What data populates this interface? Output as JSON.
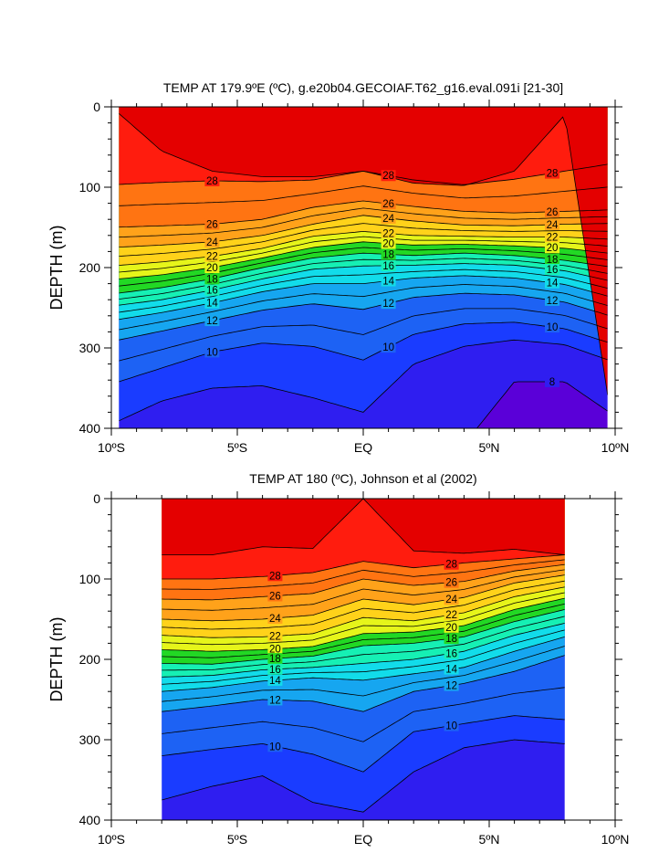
{
  "chart_data": [
    {
      "type": "heatmap",
      "title": "TEMP AT 179.9ºE (ºC), g.e20b04.GECOIAF.T62_g16.eval.091i [21-30]",
      "xlabel": "",
      "ylabel": "DEPTH (m)",
      "xlim": [
        -10,
        10
      ],
      "ylim": [
        400,
        0
      ],
      "x_ticks": [
        "10ºS",
        "5ºS",
        "EQ",
        "5ºN",
        "10ºN"
      ],
      "y_ticks": [
        "0",
        "100",
        "200",
        "300",
        "400"
      ],
      "units": "ºC",
      "contour_interval": 1,
      "contour_levels": [
        8,
        9,
        10,
        11,
        12,
        13,
        14,
        15,
        16,
        17,
        18,
        19,
        20,
        21,
        22,
        23,
        24,
        25,
        26,
        27,
        28,
        29
      ],
      "labeled_levels": [
        8,
        10,
        12,
        14,
        16,
        18,
        20,
        22,
        24,
        26,
        28
      ],
      "isotherm_depth_m": {
        "latitudes": [
          -10,
          -8,
          -6,
          -4,
          -2,
          0,
          2,
          4,
          6,
          8,
          10
        ],
        "levels": [
          {
            "level": 29,
            "depths": [
              0,
              55,
              80,
              87,
              87,
              80,
              95,
              98,
              80,
              10,
              null
            ]
          },
          {
            "level": 28,
            "depths": [
              97,
              94,
              92,
              93,
              91,
              80,
              91,
              97,
              90,
              80,
              70
            ]
          },
          {
            "level": 26,
            "depths": [
              150,
              148,
              146,
              140,
              125,
              117,
              124,
              130,
              132,
              130,
              128
            ]
          },
          {
            "level": 24,
            "depths": [
              175,
              172,
              168,
              160,
              146,
              135,
              142,
              147,
              148,
              146,
              145
            ]
          },
          {
            "level": 22,
            "depths": [
              198,
              193,
              186,
              176,
              161,
              155,
              160,
              161,
              162,
              162,
              165
            ]
          },
          {
            "level": 20,
            "depths": [
              215,
              209,
              200,
              188,
              175,
              168,
              172,
              171,
              173,
              176,
              183
            ]
          },
          {
            "level": 18,
            "depths": [
              233,
              225,
              214,
              200,
              188,
              182,
              185,
              182,
              185,
              191,
              200
            ]
          },
          {
            "level": 16,
            "depths": [
              248,
              240,
              228,
              214,
              202,
              198,
              197,
              195,
              197,
              204,
              218
            ]
          },
          {
            "level": 14,
            "depths": [
              266,
              256,
              244,
              230,
              220,
              220,
              213,
              210,
              213,
              221,
              238
            ]
          },
          {
            "level": 12,
            "depths": [
              292,
              279,
              266,
              253,
              245,
              252,
              237,
              232,
              234,
              243,
              262
            ]
          },
          {
            "level": 10,
            "depths": [
              345,
              325,
              305,
              294,
              298,
              315,
              283,
              270,
              268,
              276,
              296
            ]
          },
          {
            "level": 9,
            "depths": [
              395,
              366,
              350,
              347,
              362,
              380,
              320,
              298,
              290,
              296,
              318
            ]
          },
          {
            "level": 8,
            "depths": [
              null,
              null,
              null,
              null,
              null,
              null,
              null,
              null,
              342,
              342,
              385
            ]
          }
        ]
      }
    },
    {
      "type": "heatmap",
      "title": "TEMP AT 180 (ºC), Johnson et al (2002)",
      "xlabel": "",
      "ylabel": "DEPTH (m)",
      "xlim": [
        -10,
        10
      ],
      "ylim": [
        400,
        0
      ],
      "data_extent_lat": [
        -8,
        8
      ],
      "x_ticks": [
        "10ºS",
        "5ºS",
        "EQ",
        "5ºN",
        "10ºN"
      ],
      "y_ticks": [
        "0",
        "100",
        "200",
        "300",
        "400"
      ],
      "units": "ºC",
      "contour_interval": 1,
      "contour_levels": [
        9,
        10,
        11,
        12,
        13,
        14,
        15,
        16,
        17,
        18,
        19,
        20,
        21,
        22,
        23,
        24,
        25,
        26,
        27,
        28,
        29
      ],
      "labeled_levels": [
        10,
        12,
        14,
        16,
        18,
        20,
        22,
        24,
        26,
        28
      ],
      "isotherm_depth_m": {
        "latitudes": [
          -8,
          -6,
          -4,
          -2,
          0,
          2,
          4,
          6,
          8
        ],
        "levels": [
          {
            "level": 29,
            "depths": [
              70,
              70,
              60,
              62,
              0,
              65,
              68,
              63,
              70
            ]
          },
          {
            "level": 28,
            "depths": [
              100,
              100,
              97,
              92,
              78,
              86,
              80,
              75,
              70
            ]
          },
          {
            "level": 26,
            "depths": [
              125,
              126,
              122,
              118,
              100,
              108,
              103,
              90,
              82
            ]
          },
          {
            "level": 24,
            "depths": [
              150,
              152,
              150,
              145,
              125,
              132,
              123,
              105,
              95
            ]
          },
          {
            "level": 22,
            "depths": [
              170,
              173,
              172,
              168,
              148,
              152,
              142,
              122,
              110
            ]
          },
          {
            "level": 20,
            "depths": [
              188,
              190,
              188,
              184,
              168,
              166,
              158,
              138,
              124
            ]
          },
          {
            "level": 18,
            "depths": [
              205,
              206,
              200,
              196,
              183,
              180,
              172,
              153,
              138
            ]
          },
          {
            "level": 16,
            "depths": [
              222,
              220,
              213,
              210,
              205,
              200,
              190,
              170,
              155
            ]
          },
          {
            "level": 14,
            "depths": [
              240,
              235,
              227,
              223,
              226,
              218,
              210,
              190,
              172
            ]
          },
          {
            "level": 12,
            "depths": [
              265,
              258,
              250,
              252,
              265,
              240,
              230,
              215,
              195
            ]
          },
          {
            "level": 10,
            "depths": [
              320,
              312,
              305,
              318,
              340,
              290,
              280,
              270,
              275
            ]
          },
          {
            "level": 9,
            "depths": [
              375,
              358,
              345,
              378,
              390,
              340,
              310,
              300,
              305
            ]
          }
        ]
      }
    }
  ]
}
